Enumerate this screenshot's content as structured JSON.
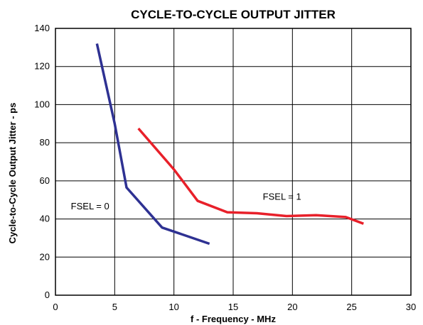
{
  "chart_data": {
    "type": "line",
    "title": "CYCLE-TO-CYCLE OUTPUT JITTER",
    "xlabel": "f - Frequency - MHz",
    "ylabel": "Cycle-to-Cycle Output Jitter - ps",
    "xlim": [
      0,
      30
    ],
    "ylim": [
      0,
      140
    ],
    "xticks": [
      "0",
      "5",
      "10",
      "15",
      "20",
      "25",
      "30"
    ],
    "yticks": [
      "0",
      "20",
      "40",
      "60",
      "80",
      "100",
      "120",
      "140"
    ],
    "grid": true,
    "series": [
      {
        "name": "FSEL = 0",
        "color": "#2e3192",
        "x": [
          3.5,
          5.0,
          6.0,
          9.0,
          13.0
        ],
        "y": [
          132,
          90,
          56.5,
          35.5,
          27
        ]
      },
      {
        "name": "FSEL = 1",
        "color": "#e8202a",
        "x": [
          7.0,
          10.0,
          12.0,
          14.5,
          17.0,
          19.5,
          22.0,
          24.5,
          26.0
        ],
        "y": [
          87.5,
          66,
          49.5,
          43.5,
          43,
          41.5,
          42,
          41,
          37.5
        ]
      }
    ],
    "annotations": [
      {
        "text": "FSEL = 0",
        "x": 1.3,
        "y": 46.5
      },
      {
        "text": "FSEL = 1",
        "x": 17.5,
        "y": 51.5
      }
    ]
  }
}
